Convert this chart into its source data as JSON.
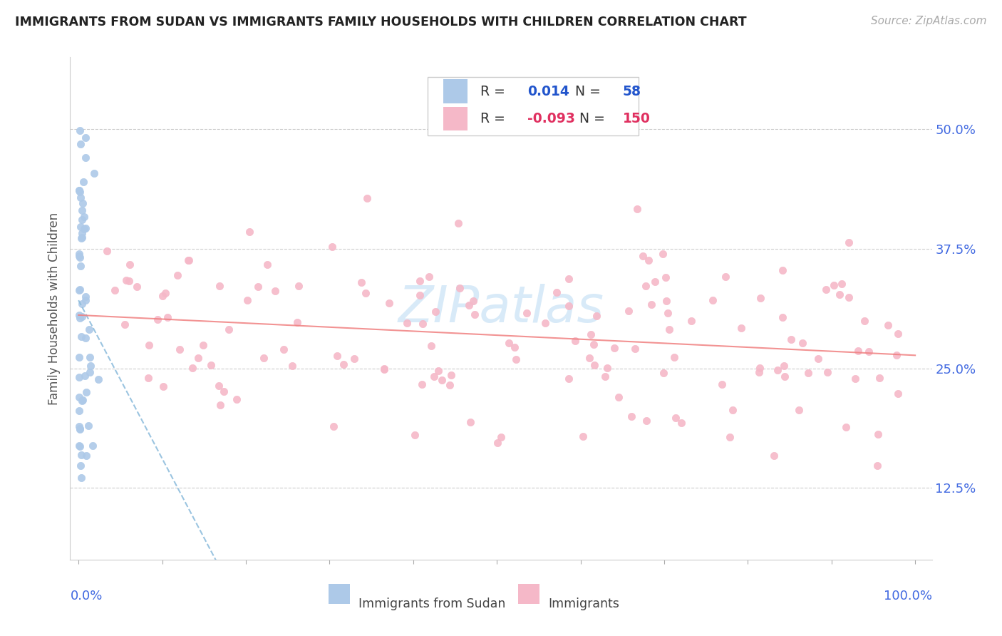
{
  "title": "IMMIGRANTS FROM SUDAN VS IMMIGRANTS FAMILY HOUSEHOLDS WITH CHILDREN CORRELATION CHART",
  "source": "Source: ZipAtlas.com",
  "ylabel": "Family Households with Children",
  "yticks": [
    "12.5%",
    "25.0%",
    "37.5%",
    "50.0%"
  ],
  "ytick_vals": [
    0.125,
    0.25,
    0.375,
    0.5
  ],
  "color_blue": "#adc9e8",
  "color_pink": "#f5b8c8",
  "trendline_blue": "#90bedd",
  "trendline_pink": "#f08080",
  "grid_color": "#cccccc",
  "title_color": "#222222",
  "source_color": "#aaaaaa",
  "axis_label_color": "#555555",
  "tick_color": "#4169E1",
  "watermark_color": "#d8eaf8",
  "legend_r1_val": "0.014",
  "legend_n1_val": "58",
  "legend_r2_val": "-0.093",
  "legend_n2_val": "150",
  "bg_color": "#ffffff"
}
